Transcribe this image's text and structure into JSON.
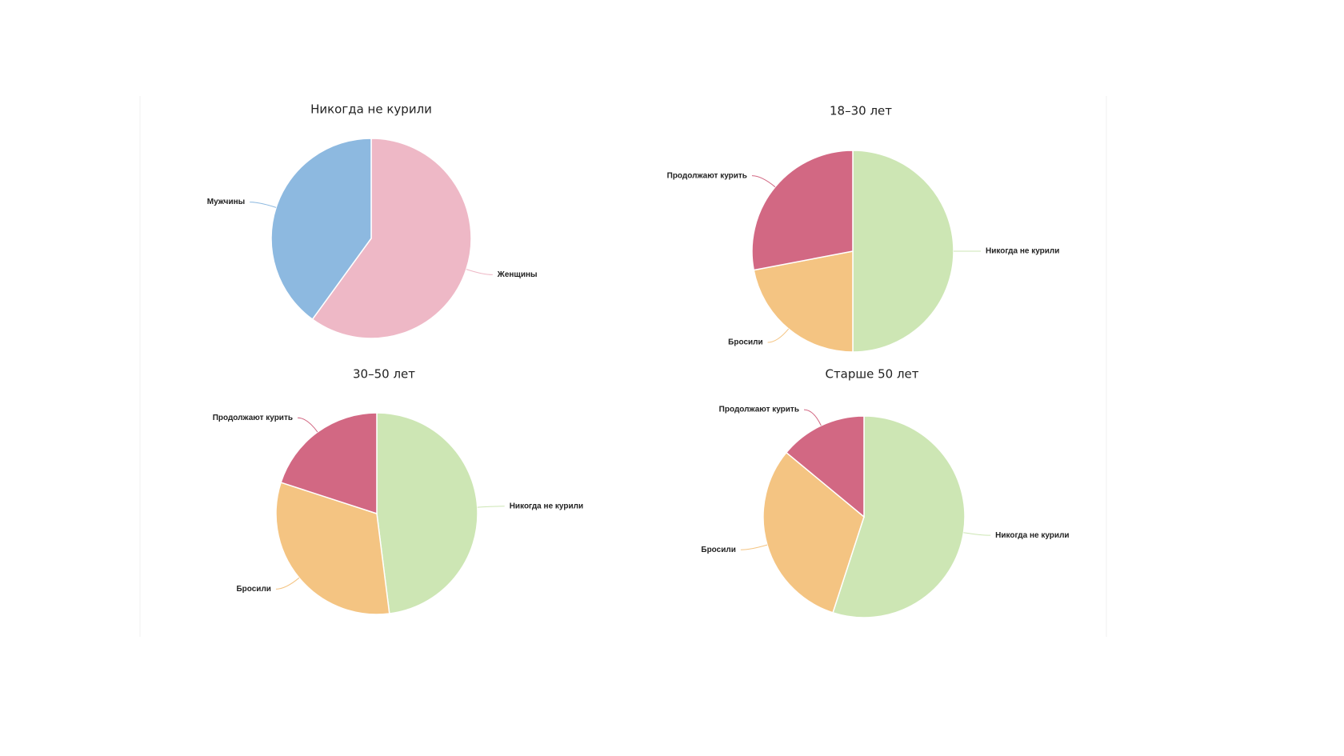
{
  "chart_data": [
    {
      "type": "pie",
      "title": "Никогда не курили",
      "categories": [
        "Женщины",
        "Мужчины"
      ],
      "values": [
        60,
        40
      ],
      "colors": [
        "#eeb8c6",
        "#8db9e0"
      ]
    },
    {
      "type": "pie",
      "title": "18–30 лет",
      "categories": [
        "Никогда не курили",
        "Бросили",
        "Продолжают курить"
      ],
      "values": [
        50,
        22,
        28
      ],
      "colors": [
        "#cde6b4",
        "#f4c482",
        "#d26883"
      ]
    },
    {
      "type": "pie",
      "title": "30–50 лет",
      "categories": [
        "Никогда не курили",
        "Бросили",
        "Продолжают курить"
      ],
      "values": [
        48,
        32,
        20
      ],
      "colors": [
        "#cde6b4",
        "#f4c482",
        "#d26883"
      ]
    },
    {
      "type": "pie",
      "title": "Старше 50 лет",
      "categories": [
        "Никогда не курили",
        "Бросили",
        "Продолжают курить"
      ],
      "values": [
        55,
        31,
        14
      ],
      "colors": [
        "#cde6b4",
        "#f4c482",
        "#d26883"
      ]
    }
  ]
}
